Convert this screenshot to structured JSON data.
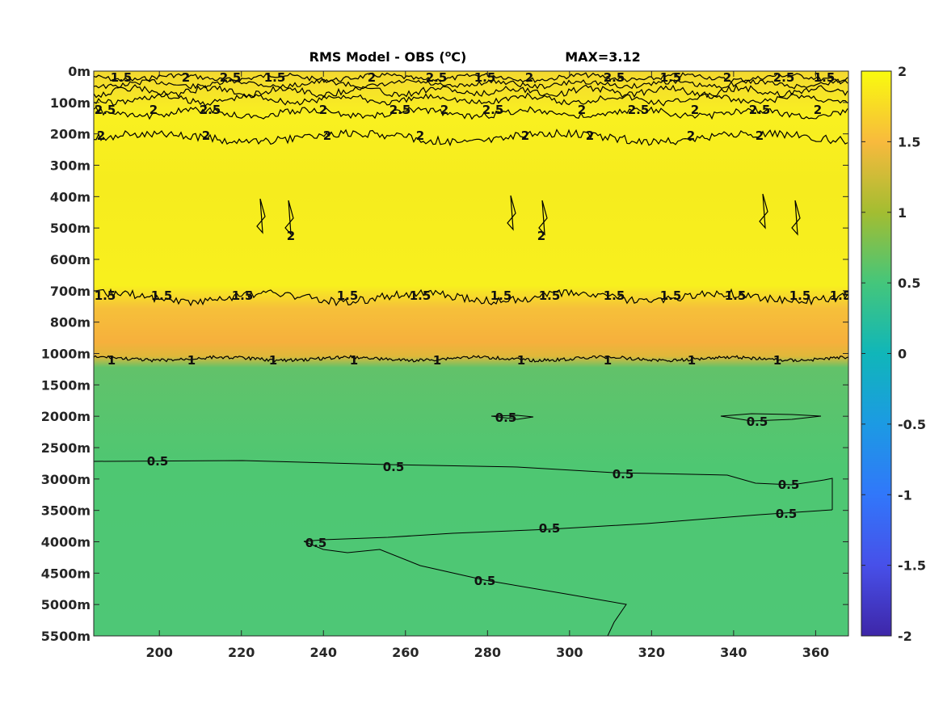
{
  "chart_data": {
    "type": "heatmap",
    "title_prefix": "RMS Model - OBS (",
    "title_unit_sup": "o",
    "title_unit": "C)",
    "title_max": "MAX=3.12",
    "x_ticks": [
      200,
      220,
      240,
      260,
      280,
      300,
      320,
      340,
      360
    ],
    "x_range": [
      184,
      368
    ],
    "y_tick_labels": [
      "0m",
      "100m",
      "200m",
      "300m",
      "400m",
      "500m",
      "600m",
      "700m",
      "800m",
      "1000m",
      "1500m",
      "2000m",
      "2500m",
      "3000m",
      "3500m",
      "4000m",
      "4500m",
      "5000m",
      "5500m"
    ],
    "colorbar": {
      "range": [
        -2,
        2
      ],
      "ticks": [
        "2",
        "1.5",
        "1",
        "0.5",
        "0",
        "-0.5",
        "-1",
        "-1.5",
        "-2"
      ],
      "colormap": "parula"
    },
    "contour_labels": {
      "surface": [
        "1.5",
        "2",
        "2.5"
      ],
      "level_2": "2",
      "level_1_5": "1.5",
      "level_1": "1",
      "level_0_5": "0.5"
    }
  }
}
